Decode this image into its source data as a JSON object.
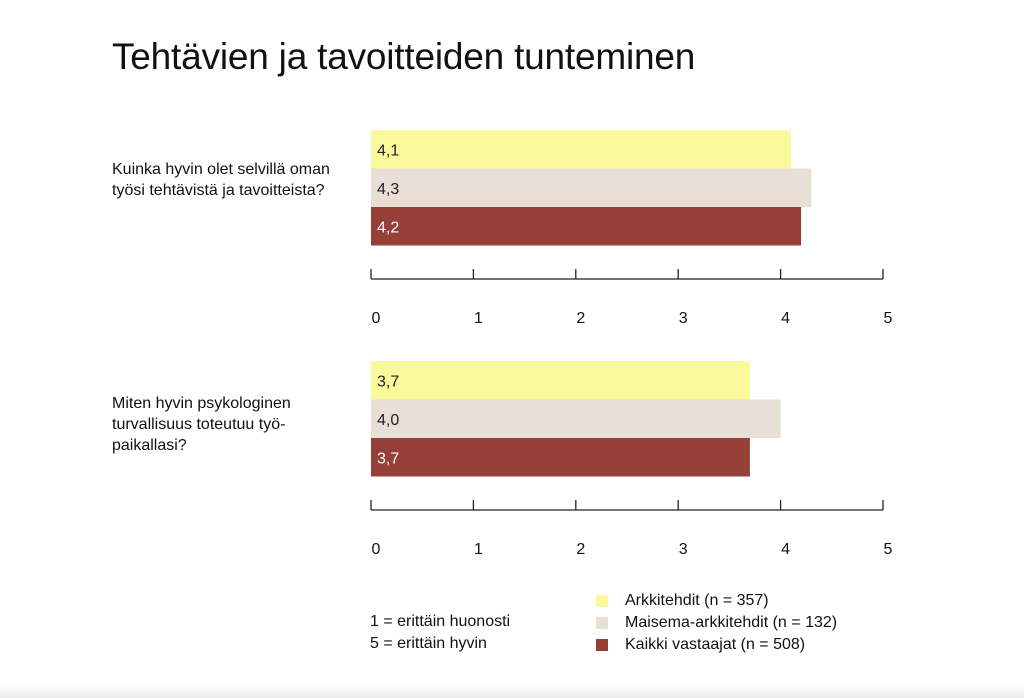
{
  "title": "Tehtävien ja tavoitteiden tunteminen",
  "colors": {
    "arkkitehdit": "#fafa9c",
    "maisema": "#e8e0d6",
    "kaikki": "#963f38",
    "label_dark": "#222222",
    "label_light": "#ffffff",
    "axis": "#222222"
  },
  "scale_note": {
    "line1": "1 = erittäin huonosti",
    "line2": "5 = erittäin hyvin"
  },
  "legend": [
    {
      "label": "Arkkitehdit (n = 357)",
      "color": "#fafa9c"
    },
    {
      "label": "Maisema-arkkitehdit (n = 132)",
      "color": "#e8e0d6"
    },
    {
      "label": "Kaikki vastaajat (n = 508)",
      "color": "#963f38"
    }
  ],
  "chart_data": [
    {
      "type": "bar",
      "question": "Kuinka hyvin olet selvillä oman työsi tehtävistä ja tavoitteista?",
      "series": [
        {
          "name": "Arkkitehdit (n = 357)",
          "value": 4.1,
          "label": "4,1"
        },
        {
          "name": "Maisema-arkkitehdit (n = 132)",
          "value": 4.3,
          "label": "4,3"
        },
        {
          "name": "Kaikki vastaajat (n = 508)",
          "value": 4.2,
          "label": "4,2"
        }
      ],
      "xlim": [
        0,
        5
      ],
      "ticks": [
        "0",
        "1",
        "2",
        "3",
        "4",
        "5"
      ]
    },
    {
      "type": "bar",
      "question": "Miten hyvin psykologinen turvallisuus toteutuu työ-paikallasi?",
      "series": [
        {
          "name": "Arkkitehdit (n = 357)",
          "value": 3.7,
          "label": "3,7"
        },
        {
          "name": "Maisema-arkkitehdit (n = 132)",
          "value": 4.0,
          "label": "4,0"
        },
        {
          "name": "Kaikki vastaajat (n = 508)",
          "value": 3.7,
          "label": "3,7"
        }
      ],
      "xlim": [
        0,
        5
      ],
      "ticks": [
        "0",
        "1",
        "2",
        "3",
        "4",
        "5"
      ]
    }
  ]
}
